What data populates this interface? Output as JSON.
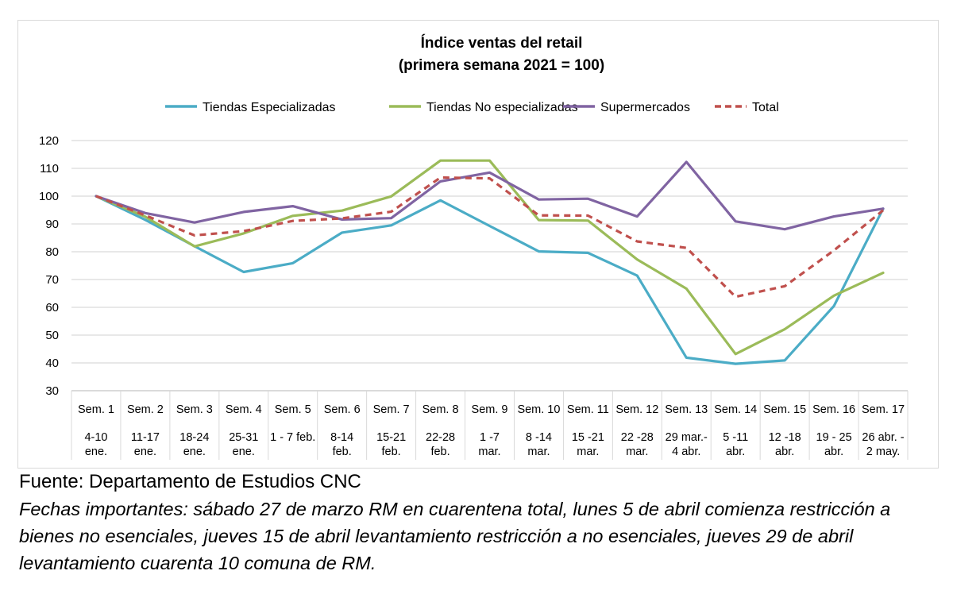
{
  "chart_data": {
    "type": "line",
    "title": "Índice ventas del retail",
    "subtitle": "(primera semana 2021 = 100)",
    "categories": [
      [
        "Sem. 1",
        "4-10",
        "ene."
      ],
      [
        "Sem. 2",
        "11-17",
        "ene."
      ],
      [
        "Sem. 3",
        "18-24",
        "ene."
      ],
      [
        "Sem. 4",
        "25-31",
        "ene."
      ],
      [
        "Sem. 5",
        "1 - 7 feb.",
        ""
      ],
      [
        "Sem. 6",
        "8-14",
        "feb."
      ],
      [
        "Sem. 7",
        "15-21",
        "feb."
      ],
      [
        "Sem. 8",
        "22-28",
        "feb."
      ],
      [
        "Sem. 9",
        "1 -7",
        "mar."
      ],
      [
        "Sem. 10",
        "8 -14",
        "mar."
      ],
      [
        "Sem. 11",
        "15 -21",
        "mar."
      ],
      [
        "Sem. 12",
        "22 -28",
        "mar."
      ],
      [
        "Sem. 13",
        "29 mar.-",
        "4 abr."
      ],
      [
        "Sem. 14",
        "5 -11",
        "abr."
      ],
      [
        "Sem. 15",
        "12 -18",
        "abr."
      ],
      [
        "Sem. 16",
        "19 - 25",
        "abr."
      ],
      [
        "Sem. 17",
        "26 abr. -",
        "2 may."
      ]
    ],
    "yticks": [
      30,
      40,
      50,
      60,
      70,
      80,
      90,
      100,
      110,
      120
    ],
    "ylim": [
      30,
      120
    ],
    "grid": true,
    "legend_position": "top",
    "series": [
      {
        "name": "Tiendas Especializadas",
        "color": "#4bacc6",
        "dash": "solid",
        "values": [
          100,
          91.5,
          82,
          72.7,
          75.9,
          86.9,
          89.5,
          98.5,
          89.3,
          80.1,
          79.6,
          71.4,
          41.9,
          39.7,
          40.9,
          60.5,
          95.5
        ]
      },
      {
        "name": "Tiendas No especializadas",
        "color": "#9bbb59",
        "dash": "solid",
        "values": [
          100,
          92.6,
          81.9,
          86.6,
          92.9,
          94.8,
          99.9,
          112.8,
          112.8,
          91.4,
          91.2,
          77.2,
          66.7,
          43.2,
          52.1,
          64.2,
          72.4
        ]
      },
      {
        "name": "Supermercados",
        "color": "#8064a2",
        "dash": "solid",
        "values": [
          100,
          93.9,
          90.5,
          94.3,
          96.4,
          91.6,
          92.1,
          105.3,
          108.5,
          98.8,
          99.1,
          92.7,
          112.3,
          90.9,
          88.1,
          92.7,
          95.5
        ]
      },
      {
        "name": "Total",
        "color": "#c0504d",
        "dash": "dashed",
        "values": [
          100,
          93.1,
          85.9,
          87.4,
          91.1,
          92.0,
          94.4,
          106.7,
          106.4,
          93.1,
          93.0,
          83.7,
          81.4,
          63.8,
          67.6,
          80.5,
          94.9
        ]
      }
    ]
  },
  "footer": {
    "source": "Fuente: Departamento de Estudios CNC",
    "notes": "Fechas importantes: sábado 27 de marzo RM en cuarentena total, lunes 5 de abril comienza restricción a bienes no esenciales, jueves 15 de abril levantamiento restricción a no esenciales, jueves 29 de abril levantamiento cuarenta 10 comuna de RM."
  }
}
